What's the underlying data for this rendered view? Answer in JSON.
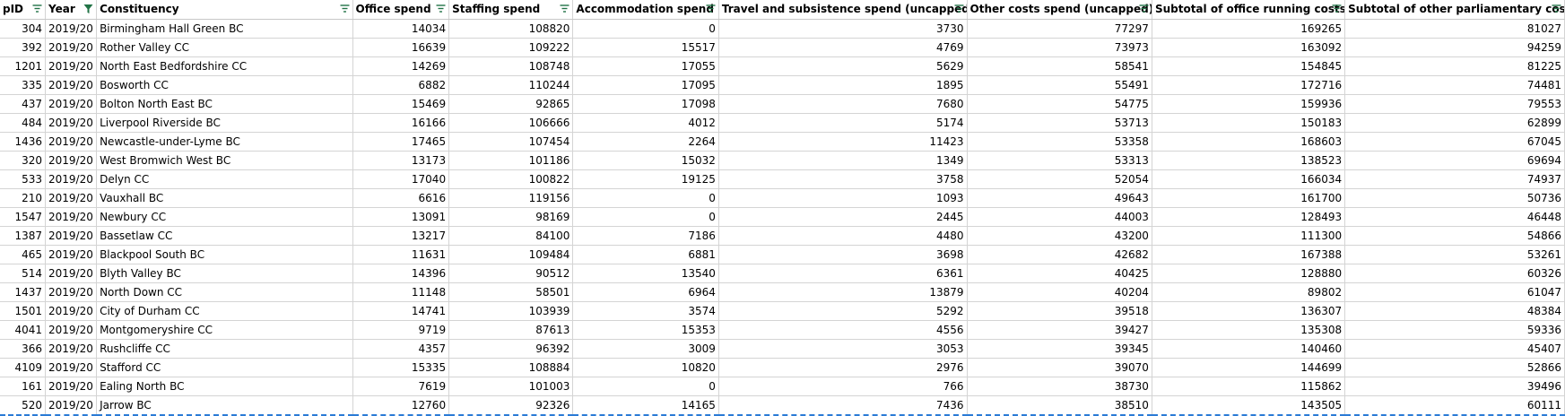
{
  "columns": [
    {
      "label": "pID",
      "filter": "filter"
    },
    {
      "label": "Year",
      "filter": "filter-active"
    },
    {
      "label": "Constituency",
      "filter": "filter"
    },
    {
      "label": "Office spend",
      "filter": "filter"
    },
    {
      "label": "Staffing spend",
      "filter": "filter"
    },
    {
      "label": "Accommodation spend",
      "filter": "filter"
    },
    {
      "label": "Travel and subsistence spend (uncapped)",
      "filter": "filter"
    },
    {
      "label": "Other costs spend (uncapped)",
      "filter": "filter"
    },
    {
      "label": "Subtotal of office running costs",
      "filter": "filter"
    },
    {
      "label": "Subtotal of other parliamentary costs",
      "filter": "filter"
    }
  ],
  "rows": [
    [
      "304",
      "2019/20",
      "Birmingham Hall Green BC",
      "14034",
      "108820",
      "0",
      "3730",
      "77297",
      "169265",
      "81027"
    ],
    [
      "392",
      "2019/20",
      "Rother Valley CC",
      "16639",
      "109222",
      "15517",
      "4769",
      "73973",
      "163092",
      "94259"
    ],
    [
      "1201",
      "2019/20",
      "North East Bedfordshire CC",
      "14269",
      "108748",
      "17055",
      "5629",
      "58541",
      "154845",
      "81225"
    ],
    [
      "335",
      "2019/20",
      "Bosworth CC",
      "6882",
      "110244",
      "17095",
      "1895",
      "55491",
      "172716",
      "74481"
    ],
    [
      "437",
      "2019/20",
      "Bolton North East BC",
      "15469",
      "92865",
      "17098",
      "7680",
      "54775",
      "159936",
      "79553"
    ],
    [
      "484",
      "2019/20",
      "Liverpool Riverside BC",
      "16166",
      "106666",
      "4012",
      "5174",
      "53713",
      "150183",
      "62899"
    ],
    [
      "1436",
      "2019/20",
      "Newcastle-under-Lyme BC",
      "17465",
      "107454",
      "2264",
      "11423",
      "53358",
      "168603",
      "67045"
    ],
    [
      "320",
      "2019/20",
      "West Bromwich West BC",
      "13173",
      "101186",
      "15032",
      "1349",
      "53313",
      "138523",
      "69694"
    ],
    [
      "533",
      "2019/20",
      "Delyn CC",
      "17040",
      "100822",
      "19125",
      "3758",
      "52054",
      "166034",
      "74937"
    ],
    [
      "210",
      "2019/20",
      "Vauxhall BC",
      "6616",
      "119156",
      "0",
      "1093",
      "49643",
      "161700",
      "50736"
    ],
    [
      "1547",
      "2019/20",
      "Newbury CC",
      "13091",
      "98169",
      "0",
      "2445",
      "44003",
      "128493",
      "46448"
    ],
    [
      "1387",
      "2019/20",
      "Bassetlaw CC",
      "13217",
      "84100",
      "7186",
      "4480",
      "43200",
      "111300",
      "54866"
    ],
    [
      "465",
      "2019/20",
      "Blackpool South BC",
      "11631",
      "109484",
      "6881",
      "3698",
      "42682",
      "167388",
      "53261"
    ],
    [
      "514",
      "2019/20",
      "Blyth Valley BC",
      "14396",
      "90512",
      "13540",
      "6361",
      "40425",
      "128880",
      "60326"
    ],
    [
      "1437",
      "2019/20",
      "North Down CC",
      "11148",
      "58501",
      "6964",
      "13879",
      "40204",
      "89802",
      "61047"
    ],
    [
      "1501",
      "2019/20",
      "City of Durham CC",
      "14741",
      "103939",
      "3574",
      "5292",
      "39518",
      "136307",
      "48384"
    ],
    [
      "4041",
      "2019/20",
      "Montgomeryshire CC",
      "9719",
      "87613",
      "15353",
      "4556",
      "39427",
      "135308",
      "59336"
    ],
    [
      "366",
      "2019/20",
      "Rushcliffe CC",
      "4357",
      "96392",
      "3009",
      "3053",
      "39345",
      "140460",
      "45407"
    ],
    [
      "4109",
      "2019/20",
      "Stafford CC",
      "15335",
      "108884",
      "10820",
      "2976",
      "39070",
      "144699",
      "52866"
    ],
    [
      "161",
      "2019/20",
      "Ealing North BC",
      "7619",
      "101003",
      "0",
      "766",
      "38730",
      "115862",
      "39496"
    ],
    [
      "520",
      "2019/20",
      "Jarrow BC",
      "12760",
      "92326",
      "14165",
      "7436",
      "38510",
      "143505",
      "60111"
    ]
  ]
}
